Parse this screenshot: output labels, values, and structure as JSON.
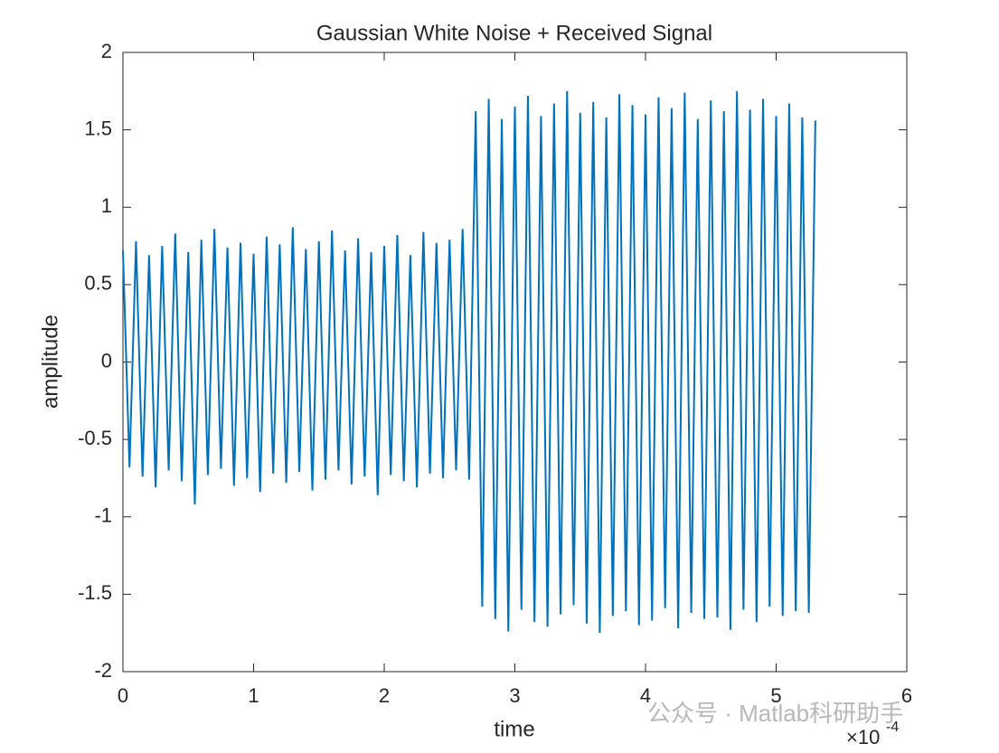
{
  "chart_data": {
    "type": "line",
    "title": "Gaussian White Noise + Received Signal",
    "x_label": "time",
    "y_label": "amplitude",
    "x_multiplier": "×10",
    "x_multiplier_exponent": "-4",
    "watermark": "公众号 · Matlab科研助手",
    "xlim": [
      0,
      6
    ],
    "xticks": [
      0,
      1,
      2,
      3,
      4,
      5,
      6
    ],
    "ylim": [
      -2,
      2
    ],
    "yticks": [
      -2,
      -1.5,
      -1,
      -0.5,
      0,
      0.5,
      1,
      1.5,
      2
    ],
    "grid": false,
    "x": [
      0,
      0.05,
      0.1,
      0.15,
      0.2,
      0.25,
      0.3,
      0.35,
      0.4,
      0.45,
      0.5,
      0.55,
      0.6,
      0.65,
      0.7,
      0.75,
      0.8,
      0.85,
      0.9,
      0.95,
      1,
      1.05,
      1.1,
      1.15,
      1.2,
      1.25,
      1.3,
      1.35,
      1.4,
      1.45,
      1.5,
      1.55,
      1.6,
      1.65,
      1.7,
      1.75,
      1.8,
      1.85,
      1.9,
      1.95,
      2,
      2.05,
      2.1,
      2.15,
      2.2,
      2.25,
      2.3,
      2.35,
      2.4,
      2.45,
      2.5,
      2.55,
      2.6,
      2.65,
      2.7,
      2.75,
      2.8,
      2.85,
      2.9,
      2.95,
      3,
      3.05,
      3.1,
      3.15,
      3.2,
      3.25,
      3.3,
      3.35,
      3.4,
      3.45,
      3.5,
      3.55,
      3.6,
      3.65,
      3.7,
      3.75,
      3.8,
      3.85,
      3.9,
      3.95,
      4,
      4.05,
      4.1,
      4.15,
      4.2,
      4.25,
      4.3,
      4.35,
      4.4,
      4.45,
      4.5,
      4.55,
      4.6,
      4.65,
      4.7,
      4.75,
      4.8,
      4.85,
      4.9,
      4.95,
      5,
      5.05,
      5.1,
      5.15,
      5.2,
      5.25,
      5.3
    ],
    "series": [
      {
        "color": "#0072bd",
        "values": [
          0.72,
          -0.68,
          0.78,
          -0.74,
          0.69,
          -0.81,
          0.75,
          -0.7,
          0.83,
          -0.77,
          0.71,
          -0.92,
          0.79,
          -0.73,
          0.86,
          -0.69,
          0.74,
          -0.8,
          0.77,
          -0.75,
          0.7,
          -0.84,
          0.81,
          -0.72,
          0.76,
          -0.78,
          0.87,
          -0.71,
          0.73,
          -0.83,
          0.78,
          -0.76,
          0.85,
          -0.7,
          0.72,
          -0.79,
          0.8,
          -0.74,
          0.71,
          -0.86,
          0.75,
          -0.73,
          0.82,
          -0.77,
          0.69,
          -0.81,
          0.84,
          -0.72,
          0.77,
          -0.75,
          0.79,
          -0.7,
          0.86,
          -0.76,
          1.62,
          -1.58,
          1.7,
          -1.66,
          1.57,
          -1.74,
          1.65,
          -1.6,
          1.72,
          -1.68,
          1.59,
          -1.71,
          1.67,
          -1.63,
          1.75,
          -1.57,
          1.61,
          -1.69,
          1.68,
          -1.75,
          1.58,
          -1.64,
          1.73,
          -1.61,
          1.66,
          -1.7,
          1.6,
          -1.67,
          1.71,
          -1.59,
          1.64,
          -1.72,
          1.74,
          -1.62,
          1.57,
          -1.66,
          1.69,
          -1.65,
          1.62,
          -1.73,
          1.75,
          -1.6,
          1.63,
          -1.68,
          1.7,
          -1.58,
          1.59,
          -1.64,
          1.67,
          -1.61,
          1.58,
          -1.62,
          1.56
        ]
      }
    ]
  }
}
